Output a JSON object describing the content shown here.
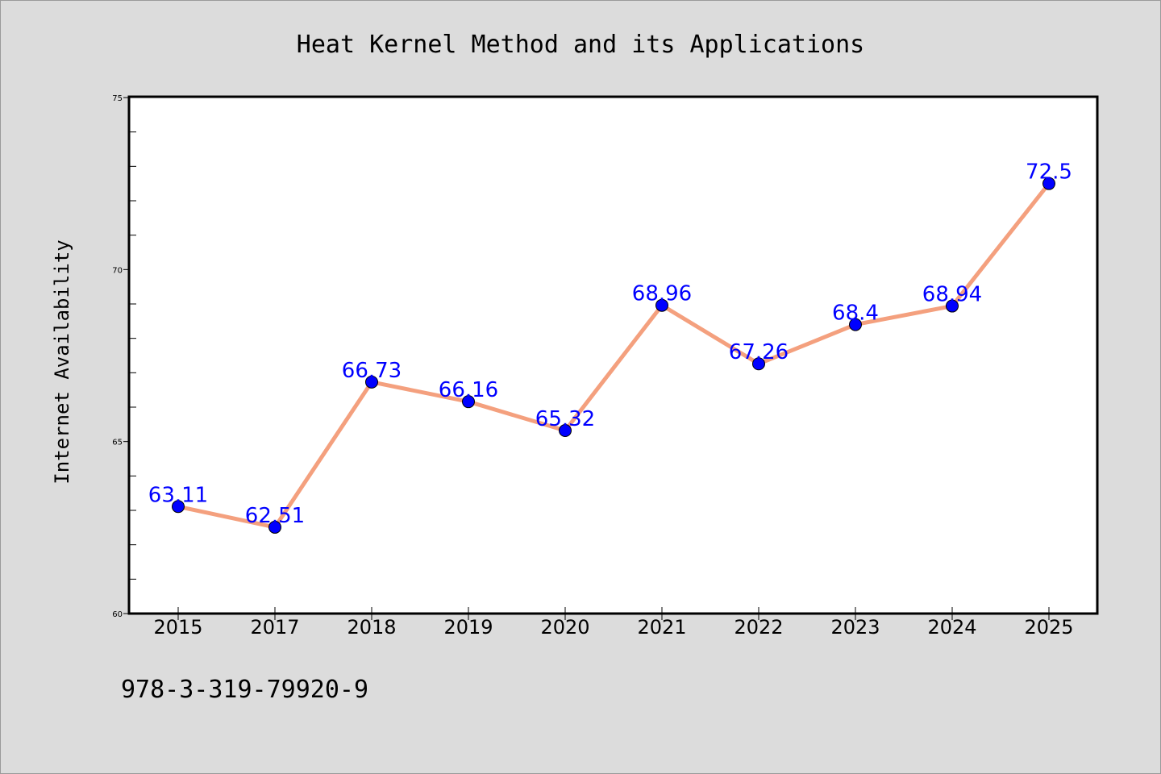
{
  "chart_data": {
    "type": "line",
    "title": "Heat Kernel Method and its Applications",
    "xlabel": "",
    "ylabel": "Internet Availability",
    "categories": [
      "2015",
      "2017",
      "2018",
      "2019",
      "2020",
      "2021",
      "2022",
      "2023",
      "2024",
      "2025"
    ],
    "values": [
      63.11,
      62.51,
      66.73,
      66.16,
      65.32,
      68.96,
      67.26,
      68.4,
      68.94,
      72.5
    ],
    "data_labels": [
      "63.11",
      "62.51",
      "66.73",
      "66.16",
      "65.32",
      "68.96",
      "67.26",
      "68.4",
      "68.94",
      "72.5"
    ],
    "ylim": [
      60,
      75
    ],
    "y_ticks": [
      "60",
      "65",
      "70",
      "75"
    ],
    "grid": false,
    "legend": "none",
    "colors": {
      "line": "#f4a07e",
      "marker": "#0000ff",
      "data_label": "#0000ff",
      "background": "#dcdcdc",
      "plot_background": "#ffffff"
    }
  },
  "footnote": "978-3-319-79920-9"
}
